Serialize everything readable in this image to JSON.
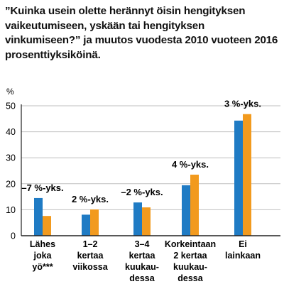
{
  "header": {
    "title": "”Kuinka usein olette herännyt öisin hengityksen vaikeutumiseen, yskään tai hengityksen vinkumiseen?” ja muutos vuodesta 2010 vuoteen 2016 prosenttiyksiköinä."
  },
  "colors": {
    "series_2010": "#1f7bc4",
    "series_2016": "#f29a1e",
    "axis": "#222222",
    "grid": "#bfbfbf"
  },
  "chart_data": {
    "type": "bar",
    "ylabel": "%",
    "ylim": [
      0,
      50
    ],
    "yticks": [
      0,
      10,
      20,
      30,
      40,
      50
    ],
    "grid": true,
    "categories": [
      [
        "Lähes",
        "joka",
        "yö***"
      ],
      [
        "1–2",
        "kertaa",
        "viikossa"
      ],
      [
        "3–4",
        "kertaa",
        "kuukau-",
        "dessa"
      ],
      [
        "Korkeintaan",
        "2 kertaa",
        "kuukau-",
        "dessa"
      ],
      [
        "Ei",
        "lainkaan"
      ]
    ],
    "series": [
      {
        "values": [
          14.5,
          8.1,
          12.8,
          19.4,
          44.3
        ]
      },
      {
        "values": [
          7.6,
          10.1,
          10.9,
          23.5,
          46.8
        ]
      }
    ],
    "annotations": [
      "–7 %-yks.",
      "2 %-yks.",
      "–2 %-yks.",
      "4 %-yks.",
      "3 %-yks."
    ]
  }
}
